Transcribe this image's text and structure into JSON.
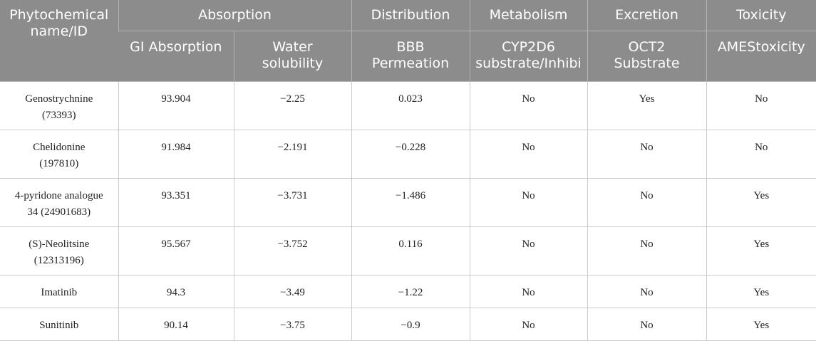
{
  "table": {
    "header": {
      "first_col": [
        "Phytochemical",
        "name/ID"
      ],
      "groups": [
        "Absorption",
        "Distribution",
        "Metabolism",
        "Excretion",
        "Toxicity"
      ],
      "columns": [
        [
          "GI Absorption"
        ],
        [
          "Water",
          "solubility"
        ],
        [
          "BBB",
          "Permeation"
        ],
        [
          "CYP2D6",
          "substrate/Inhibi"
        ],
        [
          "OCT2",
          "Substrate"
        ],
        [
          "AMEStoxicity"
        ]
      ]
    },
    "rows": [
      {
        "name": [
          "Genostrychnine",
          "(73393)"
        ],
        "gi": "93.904",
        "water": "−2.25",
        "bbb": "0.023",
        "cyp": "No",
        "oct2": "Yes",
        "ames": "No"
      },
      {
        "name": [
          "Chelidonine",
          "(197810)"
        ],
        "gi": "91.984",
        "water": "−2.191",
        "bbb": "−0.228",
        "cyp": "No",
        "oct2": "No",
        "ames": "No"
      },
      {
        "name": [
          "4-pyridone analogue",
          "34 (24901683)"
        ],
        "gi": "93.351",
        "water": "−3.731",
        "bbb": "−1.486",
        "cyp": "No",
        "oct2": "No",
        "ames": "Yes"
      },
      {
        "name": [
          "(S)-Neolitsine",
          "(12313196)"
        ],
        "gi": "95.567",
        "water": "−3.752",
        "bbb": "0.116",
        "cyp": "No",
        "oct2": "No",
        "ames": "Yes"
      },
      {
        "name": [
          "Imatinib"
        ],
        "gi": "94.3",
        "water": "−3.49",
        "bbb": "−1.22",
        "cyp": "No",
        "oct2": "No",
        "ames": "Yes"
      },
      {
        "name": [
          "Sunitinib"
        ],
        "gi": "90.14",
        "water": "−3.75",
        "bbb": "−0.9",
        "cyp": "No",
        "oct2": "No",
        "ames": "Yes"
      }
    ]
  }
}
